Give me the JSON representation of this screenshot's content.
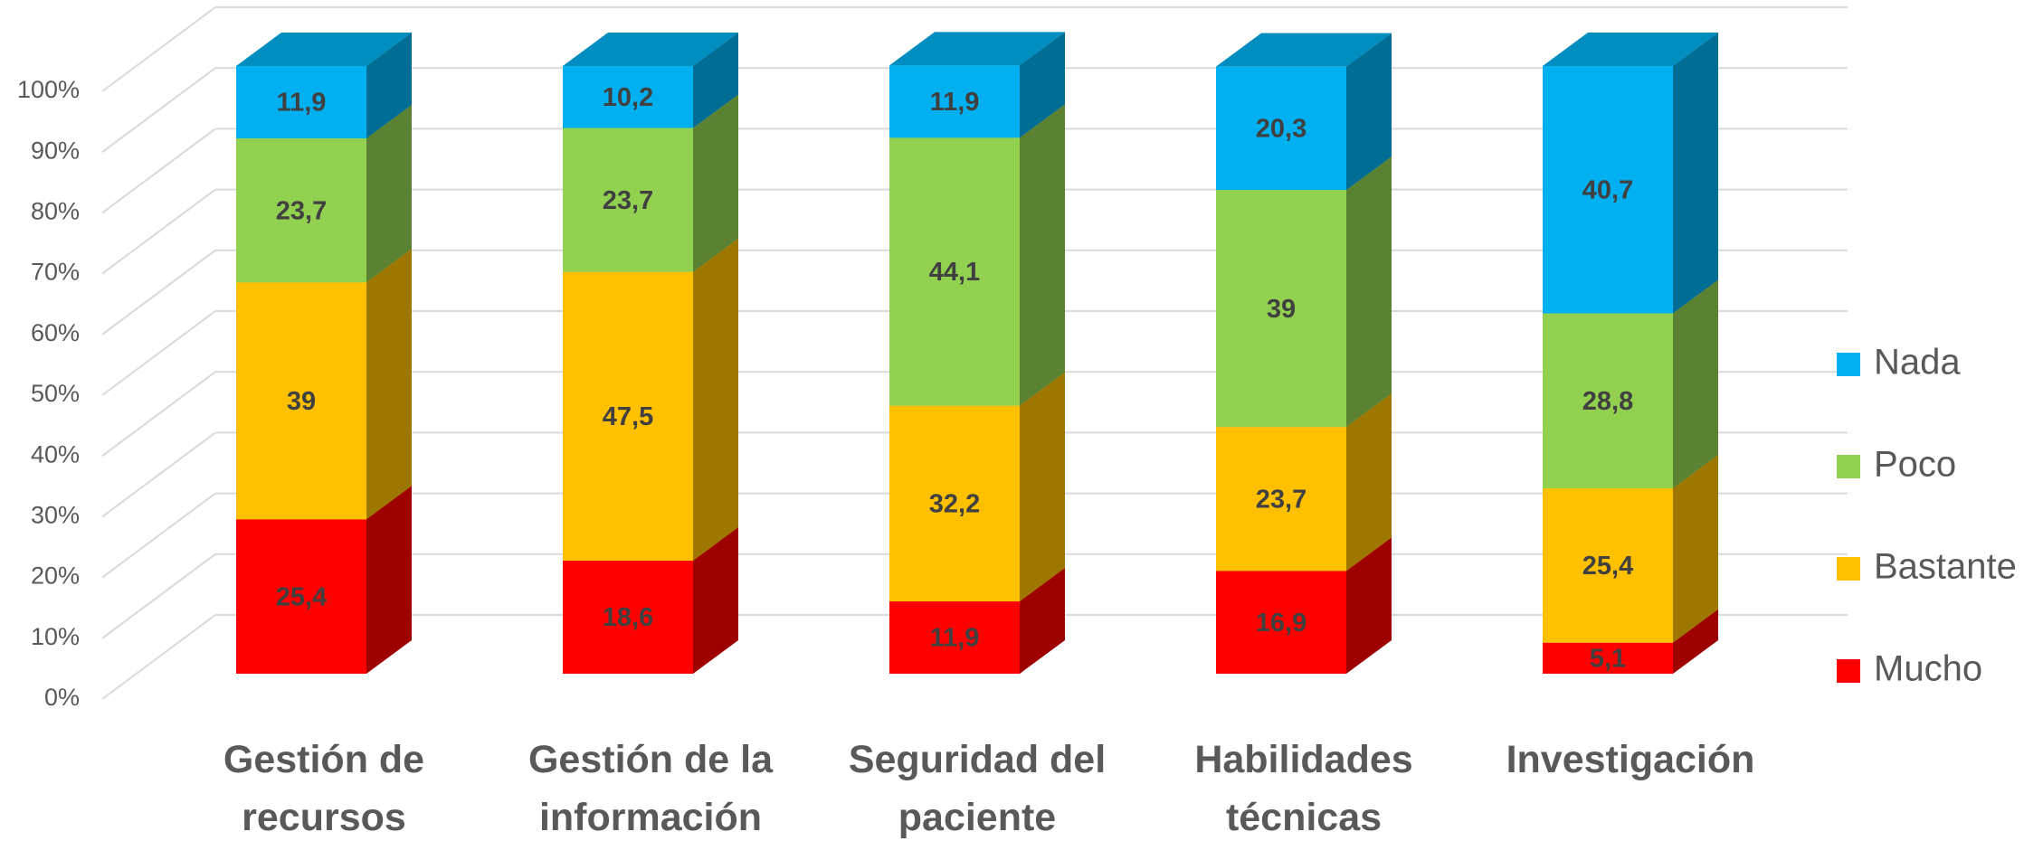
{
  "chart_data": {
    "type": "bar3d_stacked",
    "categories": [
      "Gestión de recursos",
      "Gestión de la información",
      "Seguridad del paciente",
      "Habilidades técnicas",
      "Investigación"
    ],
    "series": [
      {
        "name": "Mucho",
        "color": "#ff0000",
        "values": [
          25.4,
          18.6,
          11.9,
          16.9,
          5.1
        ],
        "value_labels": [
          "25,4",
          "18,6",
          "11,9",
          "16,9",
          "5,1"
        ]
      },
      {
        "name": "Bastante",
        "color": "#ffc000",
        "values": [
          39,
          47.5,
          32.2,
          23.7,
          25.4
        ],
        "value_labels": [
          "39",
          "47,5",
          "32,2",
          "23,7",
          "25,4"
        ]
      },
      {
        "name": "Poco",
        "color": "#92d050",
        "values": [
          23.7,
          23.7,
          44.1,
          39,
          28.8
        ],
        "value_labels": [
          "23,7",
          "23,7",
          "44,1",
          "39",
          "28,8"
        ]
      },
      {
        "name": "Nada",
        "color": "#00b0f0",
        "values": [
          11.9,
          10.2,
          11.9,
          20.3,
          40.7
        ],
        "value_labels": [
          "11,9",
          "10,2",
          "11,9",
          "20,3",
          "40,7"
        ]
      }
    ],
    "ylim": [
      0,
      100
    ],
    "yticks": [
      {
        "value": 0,
        "label": "0%"
      },
      {
        "value": 10,
        "label": "10%"
      },
      {
        "value": 20,
        "label": "20%"
      },
      {
        "value": 30,
        "label": "30%"
      },
      {
        "value": 40,
        "label": "40%"
      },
      {
        "value": 50,
        "label": "50%"
      },
      {
        "value": 60,
        "label": "60%"
      },
      {
        "value": 70,
        "label": "70%"
      },
      {
        "value": 80,
        "label": "80%"
      },
      {
        "value": 90,
        "label": "90%"
      },
      {
        "value": 100,
        "label": "100%"
      }
    ],
    "grid": true,
    "legend": "right",
    "stacked": true
  }
}
